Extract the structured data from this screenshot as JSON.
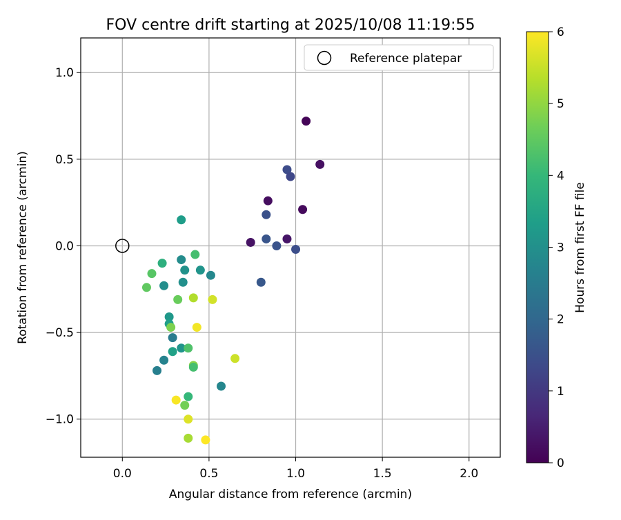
{
  "chart_data": {
    "type": "scatter",
    "title": "FOV centre drift starting at 2025/10/08 11:19:55",
    "xlabel": "Angular distance from reference (arcmin)",
    "ylabel": "Rotation from reference (arcmin)",
    "xlim": [
      -0.24,
      2.18
    ],
    "ylim": [
      -1.22,
      1.2
    ],
    "xticks": [
      0.0,
      0.5,
      1.0,
      1.5,
      2.0
    ],
    "xtick_labels": [
      "0.0",
      "0.5",
      "1.0",
      "1.5",
      "2.0"
    ],
    "yticks": [
      -1.0,
      -0.5,
      0.0,
      0.5,
      1.0
    ],
    "ytick_labels": [
      "−1.0",
      "−0.5",
      "0.0",
      "0.5",
      "1.0"
    ],
    "grid": true,
    "legend": {
      "position": "top-right",
      "entries": [
        "Reference platepar"
      ]
    },
    "reference_point": {
      "x": 0.0,
      "y": 0.0,
      "label": "Reference platepar"
    },
    "colorbar": {
      "label": "Hours from first FF file",
      "range": [
        0,
        6
      ],
      "ticks": [
        0,
        1,
        2,
        3,
        4,
        5,
        6
      ],
      "tick_labels": [
        "0",
        "1",
        "2",
        "3",
        "4",
        "5",
        "6"
      ],
      "colormap": "viridis",
      "colormap_stops": [
        "#440154",
        "#482878",
        "#3e4989",
        "#31688e",
        "#26828e",
        "#1f9e89",
        "#35b779",
        "#6ece58",
        "#b5de2b",
        "#fde725"
      ]
    },
    "points": [
      {
        "x": 1.06,
        "y": 0.72,
        "t": 0.05
      },
      {
        "x": 1.14,
        "y": 0.47,
        "t": 0.25
      },
      {
        "x": 1.04,
        "y": 0.21,
        "t": 0.15
      },
      {
        "x": 0.84,
        "y": 0.26,
        "t": 0.2
      },
      {
        "x": 0.95,
        "y": 0.04,
        "t": 0.35
      },
      {
        "x": 0.74,
        "y": 0.02,
        "t": 0.3
      },
      {
        "x": 0.95,
        "y": 0.44,
        "t": 1.4
      },
      {
        "x": 0.97,
        "y": 0.4,
        "t": 1.3
      },
      {
        "x": 0.83,
        "y": 0.18,
        "t": 1.5
      },
      {
        "x": 0.83,
        "y": 0.04,
        "t": 1.6
      },
      {
        "x": 0.89,
        "y": 0.0,
        "t": 1.55
      },
      {
        "x": 1.0,
        "y": -0.02,
        "t": 1.45
      },
      {
        "x": 0.8,
        "y": -0.21,
        "t": 1.65
      },
      {
        "x": 0.34,
        "y": 0.15,
        "t": 3.3
      },
      {
        "x": 0.34,
        "y": -0.08,
        "t": 2.9
      },
      {
        "x": 0.36,
        "y": -0.14,
        "t": 3.05
      },
      {
        "x": 0.45,
        "y": -0.14,
        "t": 3.1
      },
      {
        "x": 0.51,
        "y": -0.17,
        "t": 2.8
      },
      {
        "x": 0.24,
        "y": -0.23,
        "t": 2.95
      },
      {
        "x": 0.35,
        "y": -0.21,
        "t": 3.0
      },
      {
        "x": 0.23,
        "y": -0.1,
        "t": 3.8
      },
      {
        "x": 0.42,
        "y": -0.05,
        "t": 4.2
      },
      {
        "x": 0.17,
        "y": -0.16,
        "t": 4.4
      },
      {
        "x": 0.14,
        "y": -0.24,
        "t": 4.5
      },
      {
        "x": 0.32,
        "y": -0.31,
        "t": 4.6
      },
      {
        "x": 0.41,
        "y": -0.3,
        "t": 5.3
      },
      {
        "x": 0.52,
        "y": -0.31,
        "t": 5.6
      },
      {
        "x": 0.27,
        "y": -0.41,
        "t": 3.2
      },
      {
        "x": 0.27,
        "y": -0.45,
        "t": 3.35
      },
      {
        "x": 0.28,
        "y": -0.47,
        "t": 4.8
      },
      {
        "x": 0.43,
        "y": -0.47,
        "t": 5.9
      },
      {
        "x": 0.29,
        "y": -0.53,
        "t": 2.5
      },
      {
        "x": 0.34,
        "y": -0.59,
        "t": 3.1
      },
      {
        "x": 0.38,
        "y": -0.59,
        "t": 4.3
      },
      {
        "x": 0.29,
        "y": -0.61,
        "t": 3.4
      },
      {
        "x": 0.24,
        "y": -0.66,
        "t": 2.7
      },
      {
        "x": 0.2,
        "y": -0.72,
        "t": 2.6
      },
      {
        "x": 0.41,
        "y": -0.69,
        "t": 4.9
      },
      {
        "x": 0.41,
        "y": -0.7,
        "t": 4.2
      },
      {
        "x": 0.65,
        "y": -0.65,
        "t": 5.55
      },
      {
        "x": 0.57,
        "y": -0.81,
        "t": 2.75
      },
      {
        "x": 0.38,
        "y": -0.87,
        "t": 4.0
      },
      {
        "x": 0.31,
        "y": -0.89,
        "t": 5.95
      },
      {
        "x": 0.36,
        "y": -0.92,
        "t": 4.7
      },
      {
        "x": 0.38,
        "y": -1.0,
        "t": 5.7
      },
      {
        "x": 0.38,
        "y": -1.11,
        "t": 5.2
      },
      {
        "x": 0.48,
        "y": -1.12,
        "t": 6.0
      }
    ]
  }
}
